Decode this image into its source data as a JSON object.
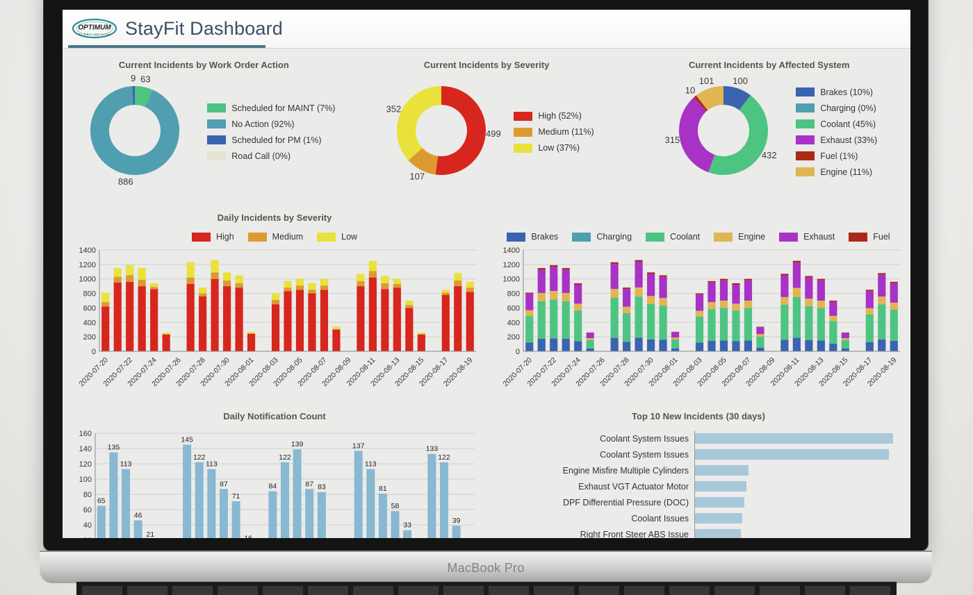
{
  "device": {
    "label": "MacBook Pro"
  },
  "header": {
    "title": "StayFit Dashboard",
    "logo_line1": "OPTIMUM",
    "logo_line2": "FLEET HEALTH"
  },
  "chart_data": [
    {
      "type": "pie",
      "title": "Current Incidents by Work Order Action",
      "donut": true,
      "slices": [
        {
          "label": "Scheduled for MAINT",
          "legend": "Scheduled for MAINT (7%)",
          "value": 63,
          "color": "#4ec482"
        },
        {
          "label": "No Action",
          "legend": "No Action (92%)",
          "value": 886,
          "color": "#4f9fb0"
        },
        {
          "label": "Scheduled for PM",
          "legend": "Scheduled for PM (1%)",
          "value": 9,
          "color": "#3a63b0"
        },
        {
          "label": "Road Call",
          "legend": "Road Call (0%)",
          "value": 0,
          "color": "#e7e3d3"
        }
      ]
    },
    {
      "type": "pie",
      "title": "Current Incidents by Severity",
      "donut": true,
      "slices": [
        {
          "label": "High",
          "legend": "High (52%)",
          "value": 499,
          "color": "#d7261d"
        },
        {
          "label": "Medium",
          "legend": "Medium (11%)",
          "value": 107,
          "color": "#dd9a33"
        },
        {
          "label": "Low",
          "legend": "Low (37%)",
          "value": 352,
          "color": "#e8e23b"
        }
      ]
    },
    {
      "type": "pie",
      "title": "Current Incidents by Affected System",
      "donut": true,
      "slices": [
        {
          "label": "Brakes",
          "legend": "Brakes (10%)",
          "value": 100,
          "color": "#3a63b0"
        },
        {
          "label": "Charging",
          "legend": "Charging (0%)",
          "value": 0,
          "color": "#4f9fb0"
        },
        {
          "label": "Coolant",
          "legend": "Coolant (45%)",
          "value": 432,
          "color": "#4ec482"
        },
        {
          "label": "Exhaust",
          "legend": "Exhaust (33%)",
          "value": 315,
          "color": "#a832c6"
        },
        {
          "label": "Fuel",
          "legend": "Fuel (1%)",
          "value": 10,
          "color": "#aa2a17"
        },
        {
          "label": "Engine",
          "legend": "Engine (11%)",
          "value": 101,
          "color": "#e0b552"
        }
      ]
    },
    {
      "type": "bar",
      "stacked": true,
      "title": "Daily Incidents by Severity",
      "ylim": [
        0,
        1400
      ],
      "ytick_step": 200,
      "categories": [
        "2020-07-20",
        "2020-07-21",
        "2020-07-22",
        "2020-07-23",
        "2020-07-24",
        "2020-07-25",
        "2020-07-26",
        "2020-07-27",
        "2020-07-28",
        "2020-07-29",
        "2020-07-30",
        "2020-07-31",
        "2020-08-01",
        "2020-08-02",
        "2020-08-03",
        "2020-08-04",
        "2020-08-05",
        "2020-08-06",
        "2020-08-07",
        "2020-08-08",
        "2020-08-09",
        "2020-08-10",
        "2020-08-11",
        "2020-08-12",
        "2020-08-13",
        "2020-08-14",
        "2020-08-15",
        "2020-08-16",
        "2020-08-17",
        "2020-08-18",
        "2020-08-19"
      ],
      "series": [
        {
          "name": "High",
          "color": "#d7261d",
          "values": [
            620,
            950,
            960,
            900,
            860,
            230,
            0,
            930,
            760,
            1000,
            900,
            880,
            240,
            0,
            650,
            830,
            850,
            800,
            850,
            300,
            0,
            900,
            1020,
            860,
            880,
            600,
            230,
            0,
            780,
            900,
            820
          ]
        },
        {
          "name": "Medium",
          "color": "#dd9a33",
          "values": [
            60,
            80,
            90,
            90,
            30,
            10,
            0,
            90,
            40,
            90,
            80,
            60,
            10,
            0,
            60,
            50,
            60,
            50,
            60,
            10,
            0,
            70,
            90,
            80,
            50,
            40,
            10,
            0,
            30,
            80,
            60
          ]
        },
        {
          "name": "Low",
          "color": "#e8e23b",
          "values": [
            130,
            120,
            140,
            160,
            50,
            20,
            0,
            210,
            80,
            170,
            110,
            110,
            20,
            0,
            90,
            90,
            90,
            90,
            90,
            30,
            0,
            100,
            140,
            100,
            70,
            60,
            20,
            0,
            40,
            100,
            80
          ]
        }
      ]
    },
    {
      "type": "bar",
      "stacked": true,
      "title": "",
      "ylim": [
        0,
        1400
      ],
      "ytick_step": 200,
      "categories": [
        "2020-07-20",
        "2020-07-21",
        "2020-07-22",
        "2020-07-23",
        "2020-07-24",
        "2020-07-25",
        "2020-07-26",
        "2020-07-27",
        "2020-07-28",
        "2020-07-29",
        "2020-07-30",
        "2020-07-31",
        "2020-08-01",
        "2020-08-02",
        "2020-08-03",
        "2020-08-04",
        "2020-08-05",
        "2020-08-06",
        "2020-08-07",
        "2020-08-08",
        "2020-08-09",
        "2020-08-10",
        "2020-08-11",
        "2020-08-12",
        "2020-08-13",
        "2020-08-14",
        "2020-08-15",
        "2020-08-16",
        "2020-08-17",
        "2020-08-18",
        "2020-08-19"
      ],
      "series": [
        {
          "name": "Brakes",
          "color": "#3a63b0",
          "values": [
            122,
            173,
            179,
            173,
            141,
            39,
            0,
            185,
            132,
            189,
            164,
            158,
            41,
            0,
            120,
            146,
            150,
            141,
            150,
            51,
            0,
            161,
            188,
            156,
            150,
            105,
            39,
            0,
            128,
            162,
            144
          ]
        },
        {
          "name": "Charging",
          "color": "#4f9fb0",
          "values": [
            0,
            0,
            0,
            0,
            0,
            0,
            0,
            0,
            0,
            0,
            0,
            0,
            0,
            0,
            0,
            0,
            0,
            0,
            0,
            0,
            0,
            0,
            0,
            0,
            0,
            0,
            0,
            0,
            0,
            0,
            0
          ]
        },
        {
          "name": "Coolant",
          "color": "#4ec482",
          "values": [
            365,
            518,
            536,
            518,
            423,
            117,
            0,
            554,
            396,
            567,
            491,
            473,
            122,
            0,
            360,
            437,
            450,
            423,
            450,
            153,
            0,
            482,
            563,
            468,
            450,
            315,
            117,
            0,
            383,
            486,
            432
          ]
        },
        {
          "name": "Engine",
          "color": "#e0b552",
          "values": [
            81,
            115,
            119,
            115,
            94,
            26,
            0,
            123,
            88,
            126,
            109,
            105,
            27,
            0,
            80,
            97,
            100,
            94,
            100,
            34,
            0,
            107,
            125,
            104,
            100,
            70,
            26,
            0,
            85,
            108,
            96
          ]
        },
        {
          "name": "Exhaust",
          "color": "#a832c6",
          "values": [
            227,
            322,
            333,
            322,
            263,
            73,
            0,
            344,
            246,
            353,
            305,
            294,
            76,
            0,
            224,
            272,
            280,
            263,
            280,
            95,
            0,
            300,
            350,
            291,
            280,
            196,
            73,
            0,
            238,
            302,
            269
          ]
        },
        {
          "name": "Fuel",
          "color": "#aa2a17",
          "values": [
            15,
            22,
            23,
            22,
            19,
            5,
            0,
            24,
            18,
            25,
            21,
            20,
            4,
            0,
            16,
            18,
            20,
            19,
            20,
            7,
            0,
            20,
            24,
            21,
            20,
            14,
            5,
            0,
            16,
            22,
            19
          ]
        }
      ]
    },
    {
      "type": "bar",
      "title": "Daily Notification Count",
      "ylim": [
        0,
        160
      ],
      "ytick_step": 20,
      "color": "#88b8d2",
      "show_value_labels": true,
      "values": [
        65,
        135,
        113,
        46,
        21,
        0,
        0,
        145,
        122,
        113,
        87,
        71,
        16,
        0,
        84,
        122,
        139,
        87,
        83,
        0,
        0,
        137,
        113,
        81,
        58,
        33,
        0,
        133,
        122,
        39,
        0
      ]
    },
    {
      "type": "bar",
      "horizontal": true,
      "title": "Top 10 New Incidents (30 days)",
      "color": "#a9c8d8",
      "categories": [
        "Coolant System Issues",
        "Coolant System Issues",
        "Engine Misfire Multiple Cylinders",
        "Exhaust VGT Actuator Motor",
        "DPF Differential Pressure (DOC)",
        "Coolant Issues",
        "Right Front Steer ABS Issue"
      ],
      "values": [
        100,
        98,
        27,
        26,
        25,
        24,
        23
      ]
    }
  ]
}
